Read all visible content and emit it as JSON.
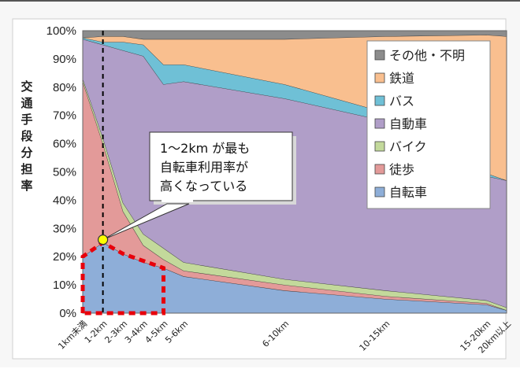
{
  "chart_data": {
    "type": "area",
    "stacked": true,
    "title": "",
    "xlabel": "",
    "ylabel": "交通手段分担率",
    "ylim": [
      0,
      100
    ],
    "y_ticks": [
      "0%",
      "10%",
      "20%",
      "30%",
      "40%",
      "50%",
      "60%",
      "70%",
      "80%",
      "90%",
      "100%"
    ],
    "categories": [
      "1km未満",
      "1-2km",
      "2-3km",
      "3-4km",
      "4-5km",
      "5-6km",
      "6-10km",
      "10-15km",
      "15-20km",
      "20km以上"
    ],
    "x_positions_km": [
      0,
      1,
      2,
      3,
      4,
      5,
      10,
      15,
      20,
      21
    ],
    "legend_position": "top-right",
    "series": [
      {
        "name": "自転車",
        "color": "#8eaed8",
        "values": [
          20,
          25,
          21,
          18,
          16,
          13,
          8,
          5,
          3,
          1
        ]
      },
      {
        "name": "徒歩",
        "color": "#e39a99",
        "values": [
          62,
          35,
          15,
          6,
          3,
          2,
          2,
          1,
          0.5,
          0
        ]
      },
      {
        "name": "バイク",
        "color": "#c3d99b",
        "values": [
          1,
          2,
          3,
          4,
          4,
          3,
          2,
          2,
          1,
          1
        ]
      },
      {
        "name": "自動車",
        "color": "#b09ec8",
        "values": [
          14,
          33,
          54,
          63,
          58,
          64,
          64,
          60,
          44,
          45
        ]
      },
      {
        "name": "バス",
        "color": "#6fc0d6",
        "values": [
          0.5,
          1,
          3,
          4,
          7,
          6,
          5,
          3,
          1,
          0
        ]
      },
      {
        "name": "鉄道",
        "color": "#f9bf8f",
        "values": [
          0,
          2,
          2,
          2,
          9,
          9,
          16,
          27,
          49,
          51
        ]
      },
      {
        "name": "その他・不明",
        "color": "#8c8c8c",
        "values": [
          2.5,
          2,
          2,
          3,
          3,
          3,
          3,
          2,
          1.5,
          2
        ]
      }
    ],
    "legend_order": [
      "その他・不明",
      "鉄道",
      "バス",
      "自動車",
      "バイク",
      "徒歩",
      "自転車"
    ],
    "annotation": {
      "lines": [
        "1～2km が最も",
        "自転車利用率が",
        "高くなっている"
      ],
      "point": {
        "x_km": 1,
        "y": 26
      }
    }
  }
}
